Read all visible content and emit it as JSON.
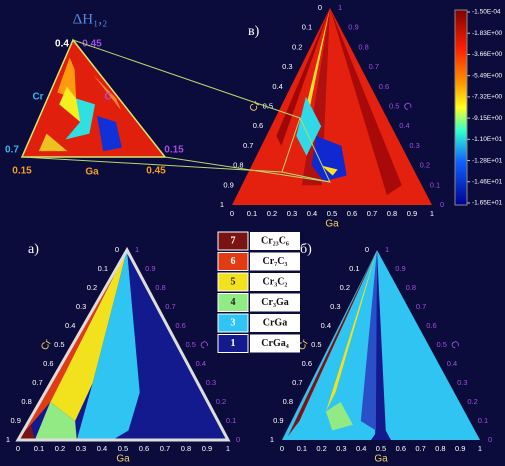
{
  "inset": {
    "title": "ΔH₁,₂",
    "labels": [
      "0.4",
      "0.45",
      "Cr",
      "C",
      "0.7",
      "0.15",
      "0.15",
      "Ga",
      "0.45"
    ]
  },
  "panels": [
    {
      "label": "в)"
    },
    {
      "label": "а)"
    },
    {
      "label": "б)"
    }
  ],
  "axis_ticks": [
    "0",
    "0.1",
    "0.2",
    "0.3",
    "0.4",
    "0.5",
    "0.6",
    "0.7",
    "0.8",
    "0.9",
    "1"
  ],
  "axis_names": {
    "bottom": "Ga",
    "left": "Cr",
    "right": "C"
  },
  "colorbar": {
    "ticks": [
      "-1.50E-04",
      "-1.83E+00",
      "-3.66E+00",
      "-5.49E+00",
      "-7.32E+00",
      "-9.15E+00",
      "-1.10E+01",
      "-1.28E+01",
      "-1.46E+01",
      "-1.65E+01"
    ]
  },
  "legend": [
    {
      "number": "7",
      "phase": "Cr₂₃C₆",
      "color": "#7a1414"
    },
    {
      "number": "6",
      "phase": "Cr₇C₃",
      "color": "#e23a12"
    },
    {
      "number": "5",
      "phase": "Cr₃C₂",
      "color": "#f2e21e"
    },
    {
      "number": "4",
      "phase": "Cr₃Ga",
      "color": "#92ea84"
    },
    {
      "number": "3",
      "phase": "CrGa",
      "color": "#30c4f2"
    },
    {
      "number": "1",
      "phase": "CrGa₄",
      "color": "#121a8e"
    }
  ]
}
